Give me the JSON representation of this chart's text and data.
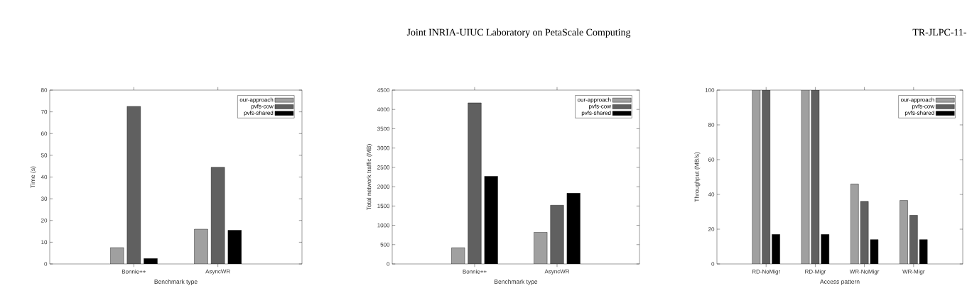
{
  "chart_data": [
    {
      "type": "bar",
      "xlabel": "Benchmark type",
      "ylabel": "Time (s)",
      "categories": [
        "Bonnie++",
        "AsyncWR"
      ],
      "ylim": [
        0,
        80
      ],
      "yticks": [
        0,
        10,
        20,
        30,
        40,
        50,
        60,
        70,
        80
      ],
      "legend": "top right",
      "grid": false,
      "annotations": [
        "Joint INRIA-UIUC Laboratory on PetaScale Computing",
        "TR-JLPC-11-"
      ],
      "series": [
        {
          "name": "our-approach",
          "color": "#a0a0a0",
          "values": [
            7.5,
            16
          ]
        },
        {
          "name": "pvfs-cow",
          "color": "#606060",
          "values": [
            72.5,
            44.5
          ]
        },
        {
          "name": "pvfs-shared",
          "color": "#000000",
          "values": [
            2.5,
            15.5
          ]
        }
      ]
    },
    {
      "type": "bar",
      "xlabel": "Benchmark type",
      "ylabel": "Total network traffic (MB)",
      "categories": [
        "Bonnie++",
        "AsyncWR"
      ],
      "ylim": [
        0,
        4500
      ],
      "yticks": [
        0,
        500,
        1000,
        1500,
        2000,
        2500,
        3000,
        3500,
        4000,
        4500
      ],
      "legend": "top right",
      "grid": false,
      "series": [
        {
          "name": "our-approach",
          "color": "#a0a0a0",
          "values": [
            420,
            820
          ]
        },
        {
          "name": "pvfs-cow",
          "color": "#606060",
          "values": [
            4170,
            1520
          ]
        },
        {
          "name": "pvfs-shared",
          "color": "#000000",
          "values": [
            2270,
            1830
          ]
        }
      ]
    },
    {
      "type": "bar",
      "xlabel": "Access pattern",
      "ylabel": "Throughput (MB/s)",
      "categories": [
        "RD-NoMigr",
        "RD-Migr",
        "WR-NoMigr",
        "WR-Migr"
      ],
      "ylim": [
        0,
        100
      ],
      "yticks": [
        0,
        20,
        40,
        60,
        80,
        100
      ],
      "legend": "top right",
      "grid": false,
      "series": [
        {
          "name": "our-approach",
          "color": "#a0a0a0",
          "values": [
            100,
            100,
            46,
            36.5
          ]
        },
        {
          "name": "pvfs-cow",
          "color": "#606060",
          "values": [
            100,
            100,
            36,
            28
          ]
        },
        {
          "name": "pvfs-shared",
          "color": "#000000",
          "values": [
            17,
            17,
            14,
            14
          ]
        }
      ]
    }
  ]
}
